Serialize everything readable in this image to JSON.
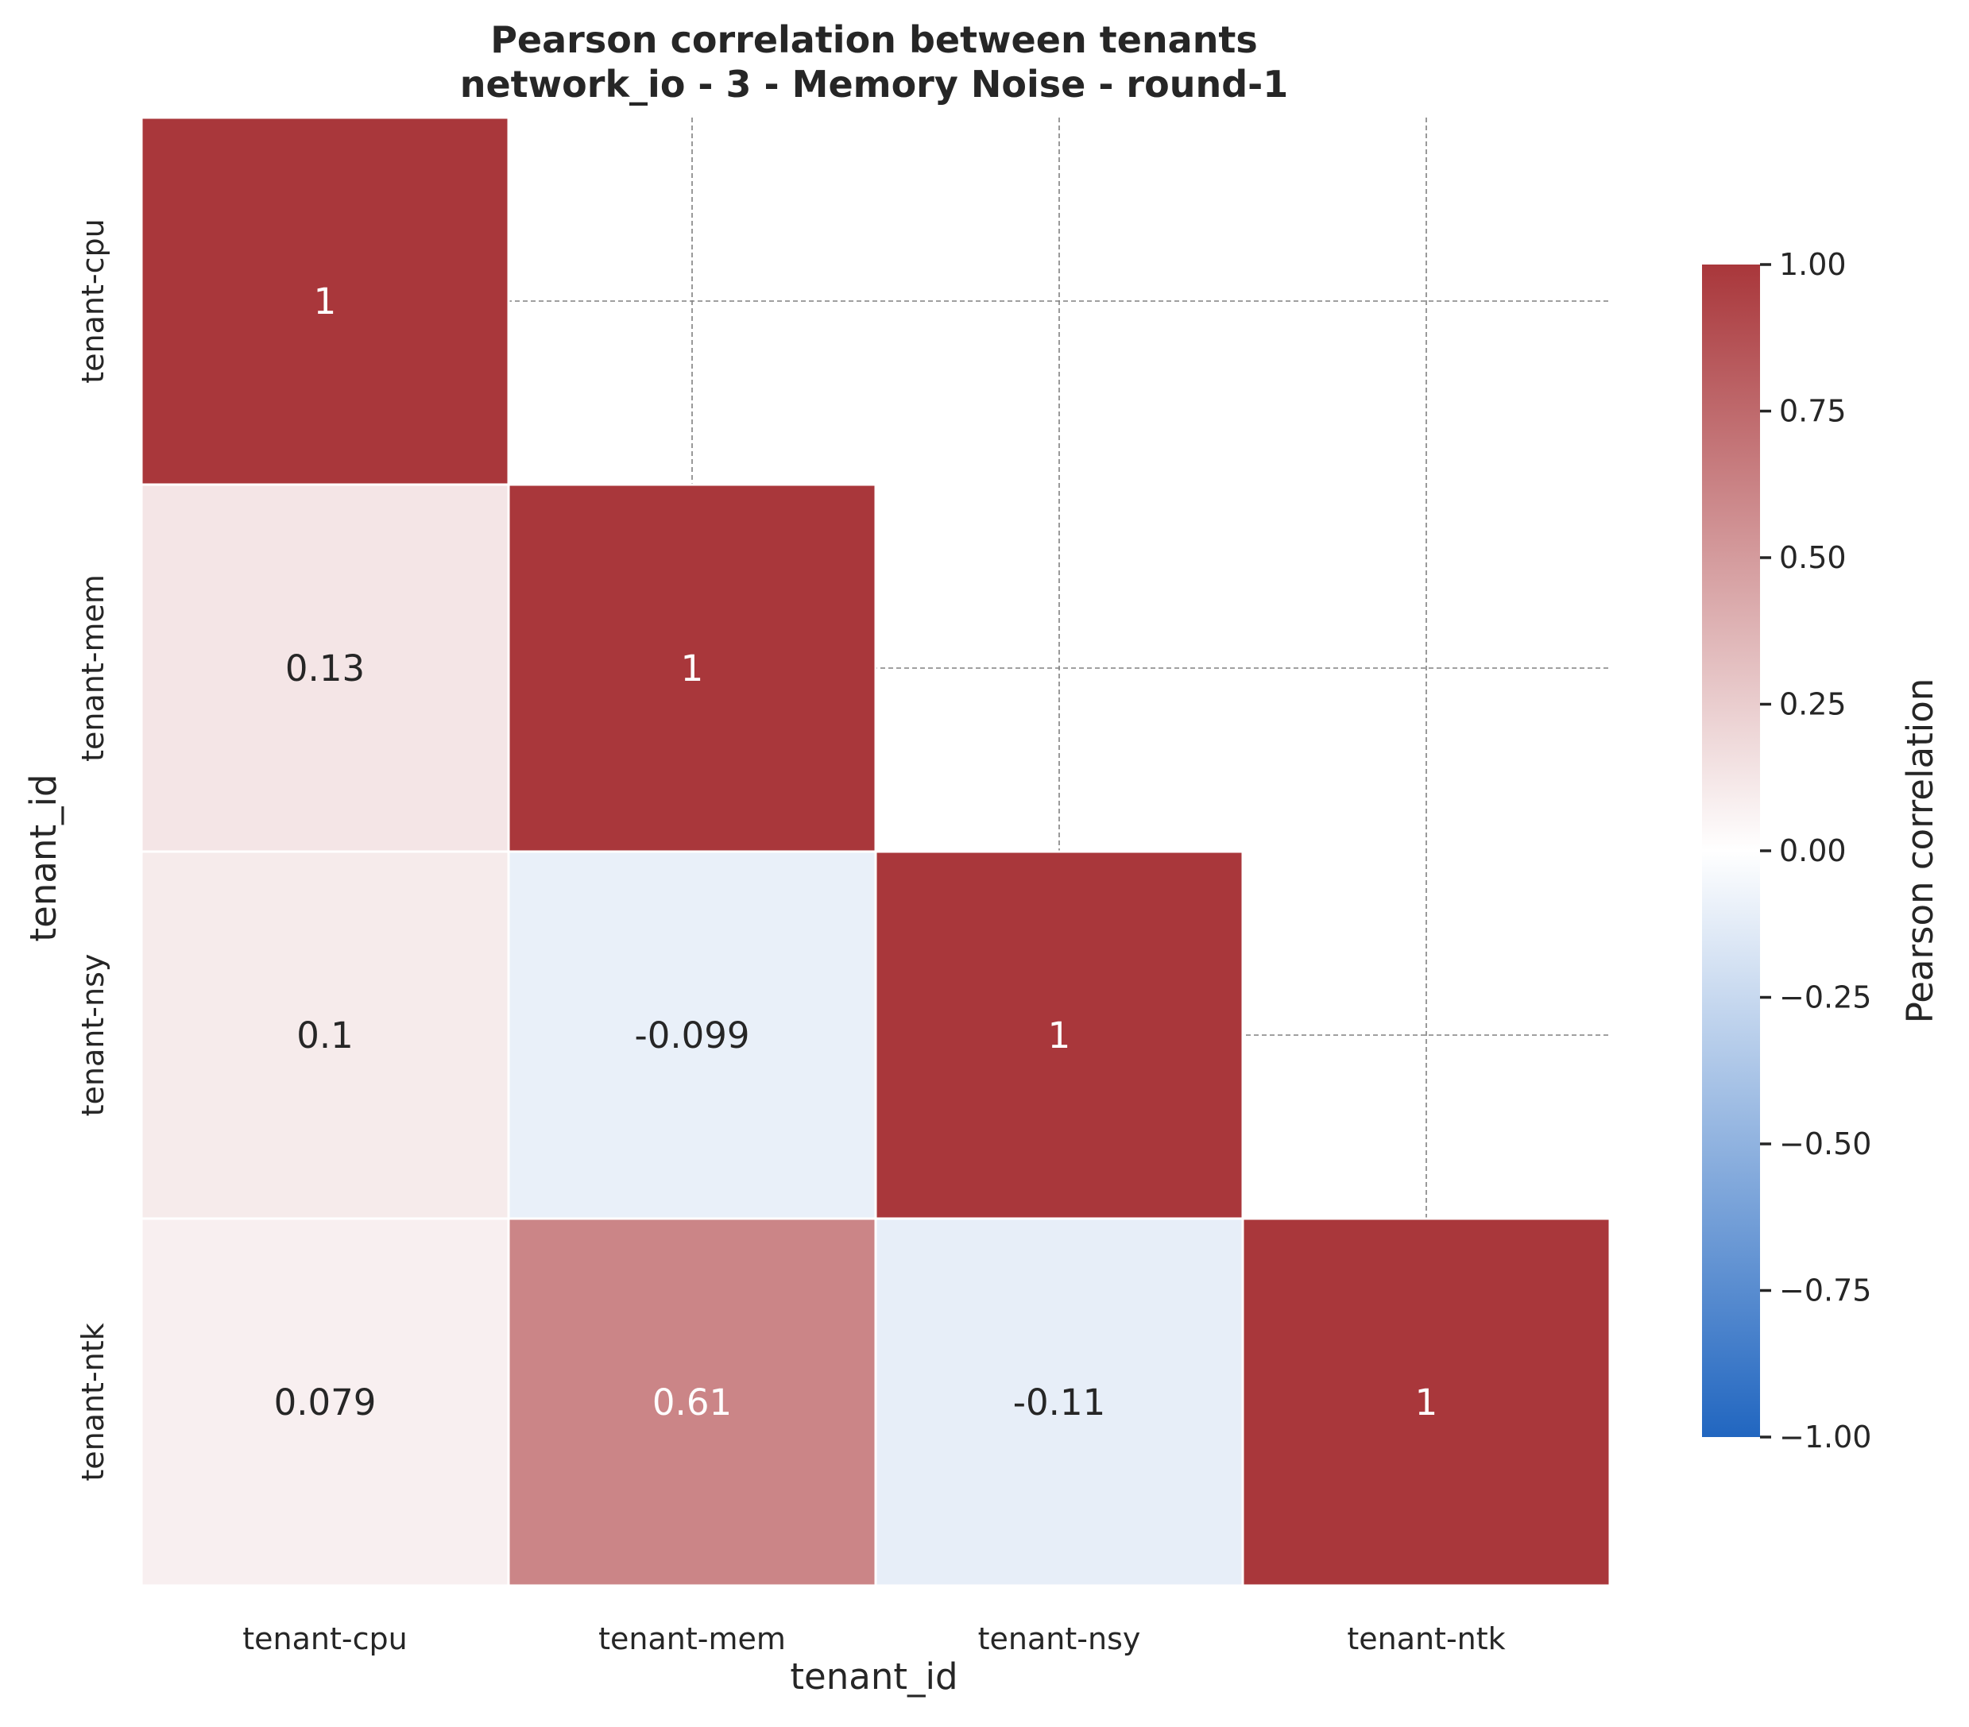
{
  "chart_data": {
    "type": "heatmap",
    "title": "Pearson correlation between tenants",
    "subtitle": "network_io - 3 - Memory Noise - round-1",
    "xlabel": "tenant_id",
    "ylabel": "tenant_id",
    "categories": [
      "tenant-cpu",
      "tenant-mem",
      "tenant-nsy",
      "tenant-ntk"
    ],
    "matrix": [
      [
        1,
        null,
        null,
        null
      ],
      [
        0.13,
        1,
        null,
        null
      ],
      [
        0.1,
        -0.099,
        1,
        null
      ],
      [
        0.079,
        0.61,
        -0.11,
        1
      ]
    ],
    "cell_labels": [
      [
        "1",
        "",
        "",
        ""
      ],
      [
        "0.13",
        "1",
        "",
        ""
      ],
      [
        "0.1",
        "-0.099",
        "1",
        ""
      ],
      [
        "0.079",
        "0.61",
        "-0.11",
        "1"
      ]
    ],
    "mask": "upper triangle",
    "colormap": "vlag",
    "colorbar": {
      "label": "Pearson correlation",
      "range": [
        -1,
        1
      ],
      "ticks": [
        1.0,
        0.75,
        0.5,
        0.25,
        0.0,
        -0.25,
        -0.5,
        -0.75,
        -1.0
      ],
      "tick_labels": [
        "1.00",
        "0.75",
        "0.50",
        "0.25",
        "0.00",
        "−0.25",
        "−0.50",
        "−0.75",
        "−1.00"
      ],
      "colors": [
        "#2166c0",
        "#ffffff",
        "#a9373b"
      ]
    },
    "grid": true,
    "grid_style": "dashed gray"
  }
}
